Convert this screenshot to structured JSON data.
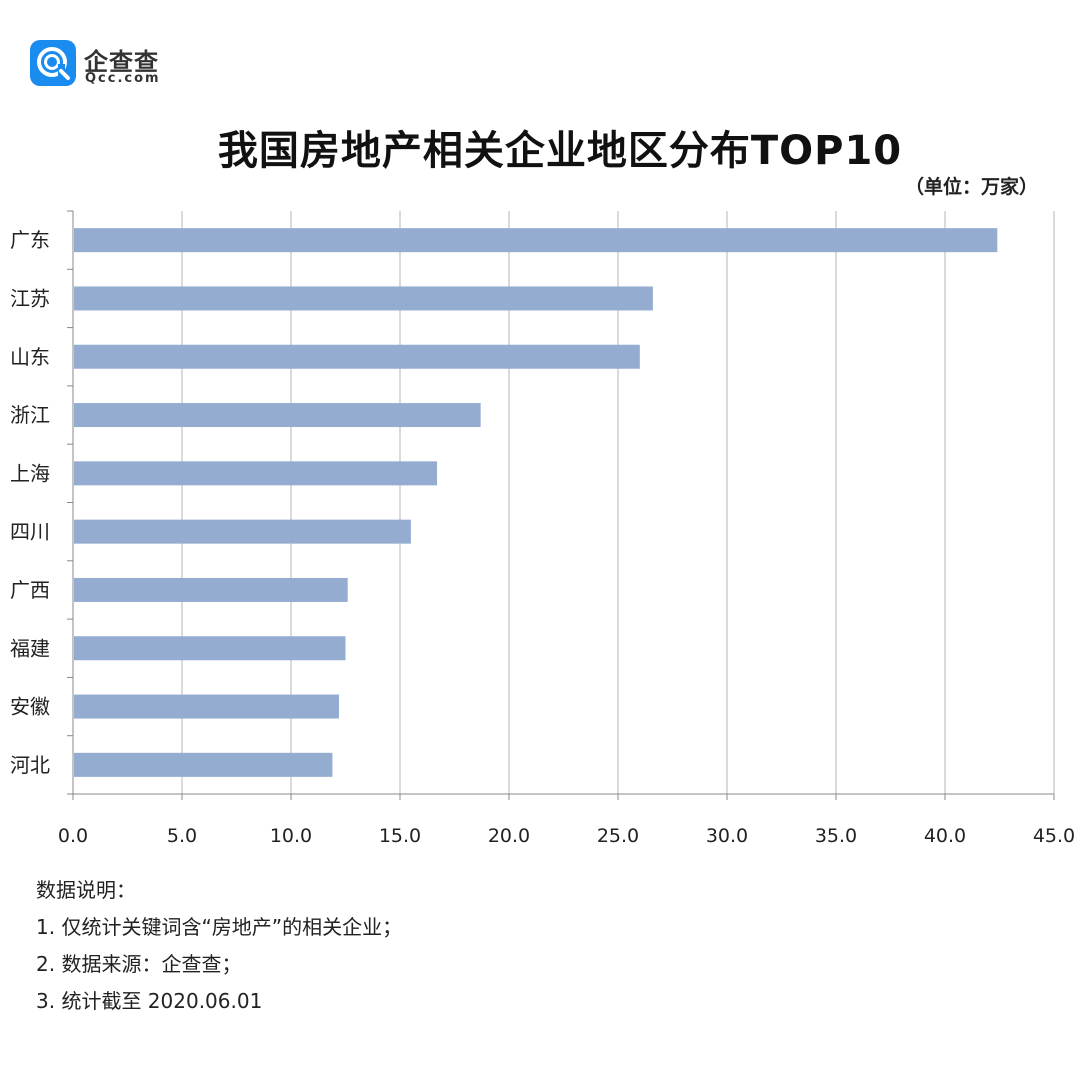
{
  "logo": {
    "name": "企查查",
    "domain": "Qcc.com",
    "brand_color": "#1a8cf0"
  },
  "chart_data": {
    "type": "bar",
    "orientation": "horizontal",
    "title": "我国房地产相关企业地区分布TOP10",
    "unit": "（单位：万家）",
    "categories": [
      "广东",
      "江苏",
      "山东",
      "浙江",
      "上海",
      "四川",
      "广西",
      "福建",
      "安徽",
      "河北"
    ],
    "values": [
      42.4,
      26.6,
      26.0,
      18.7,
      16.7,
      15.5,
      12.6,
      12.5,
      12.2,
      11.9
    ],
    "xlim": [
      0,
      45
    ],
    "x_ticks": [
      "0.0",
      "5.0",
      "10.0",
      "15.0",
      "20.0",
      "25.0",
      "30.0",
      "35.0",
      "40.0",
      "45.0"
    ],
    "grid": "vertical",
    "bar_color": "#93acd0"
  },
  "notes": {
    "heading": "数据说明：",
    "lines": [
      "1. 仅统计关键词含“房地产”的相关企业；",
      "2. 数据来源：企查查；",
      "3. 统计截至 2020.06.01"
    ]
  }
}
